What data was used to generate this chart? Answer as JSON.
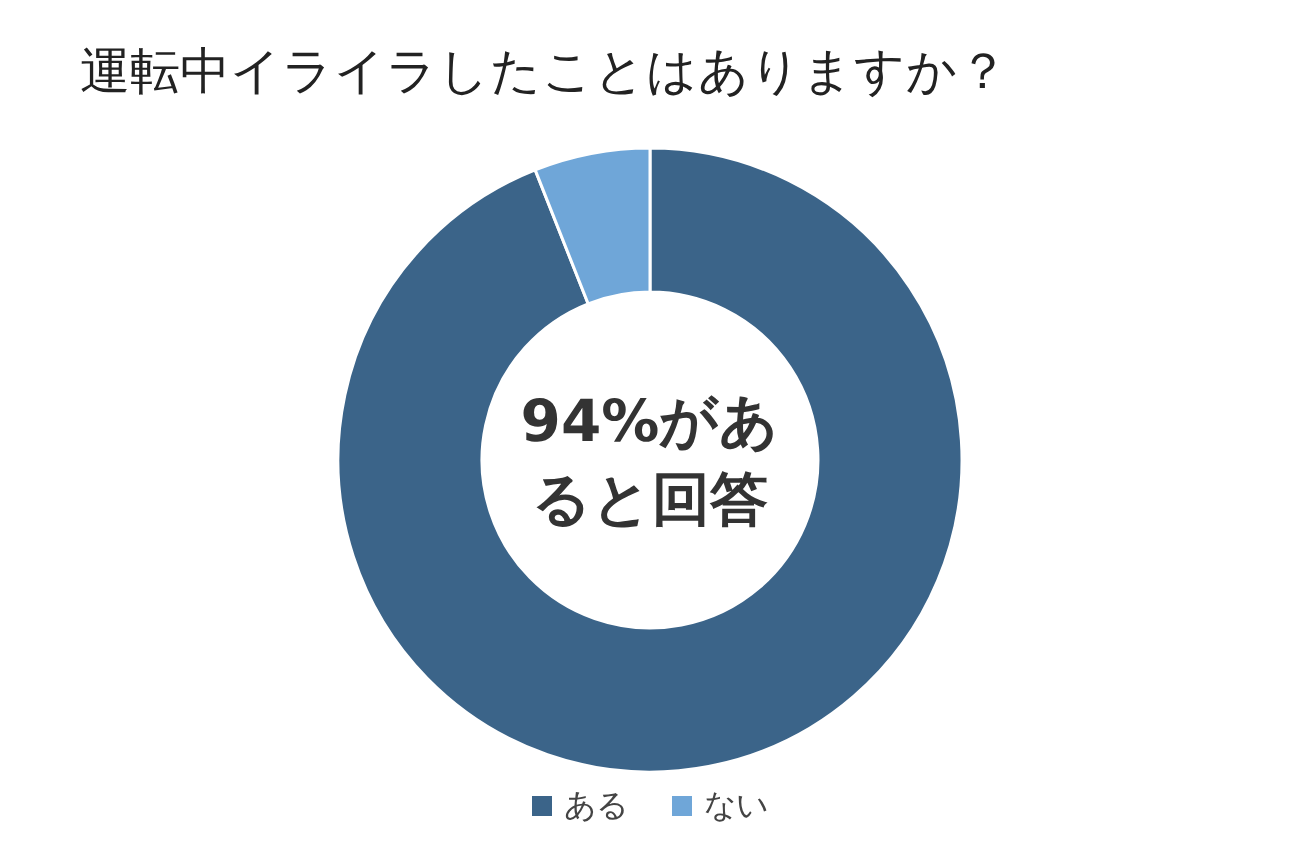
{
  "chart_data": {
    "type": "donut",
    "title": "運転中イライラしたことはありますか？",
    "categories": [
      "ある",
      "ない"
    ],
    "values": [
      94,
      6
    ],
    "colors": [
      "#3b6489",
      "#6fa6d8"
    ],
    "legend": "bottom",
    "annotations": [
      "94%があると回答"
    ]
  }
}
